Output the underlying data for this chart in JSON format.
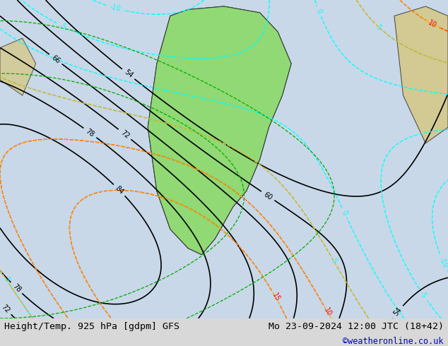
{
  "title_left": "Height/Temp. 925 hPa [gdpm] GFS",
  "title_right": "Mo 23-09-2024 12:00 JTC (18+42)",
  "subtitle_right": "©weatheronline.co.uk",
  "bg_color": "#d8d8d8",
  "map_bg_color": "#e8e8e8",
  "fig_width": 6.34,
  "fig_height": 4.9,
  "bottom_bar_height": 0.08,
  "bottom_bar_color": "#f0f0f0",
  "title_fontsize": 9.5,
  "subtitle_fontsize": 8.5,
  "title_color": "#000000",
  "subtitle_color": "#0000cc"
}
